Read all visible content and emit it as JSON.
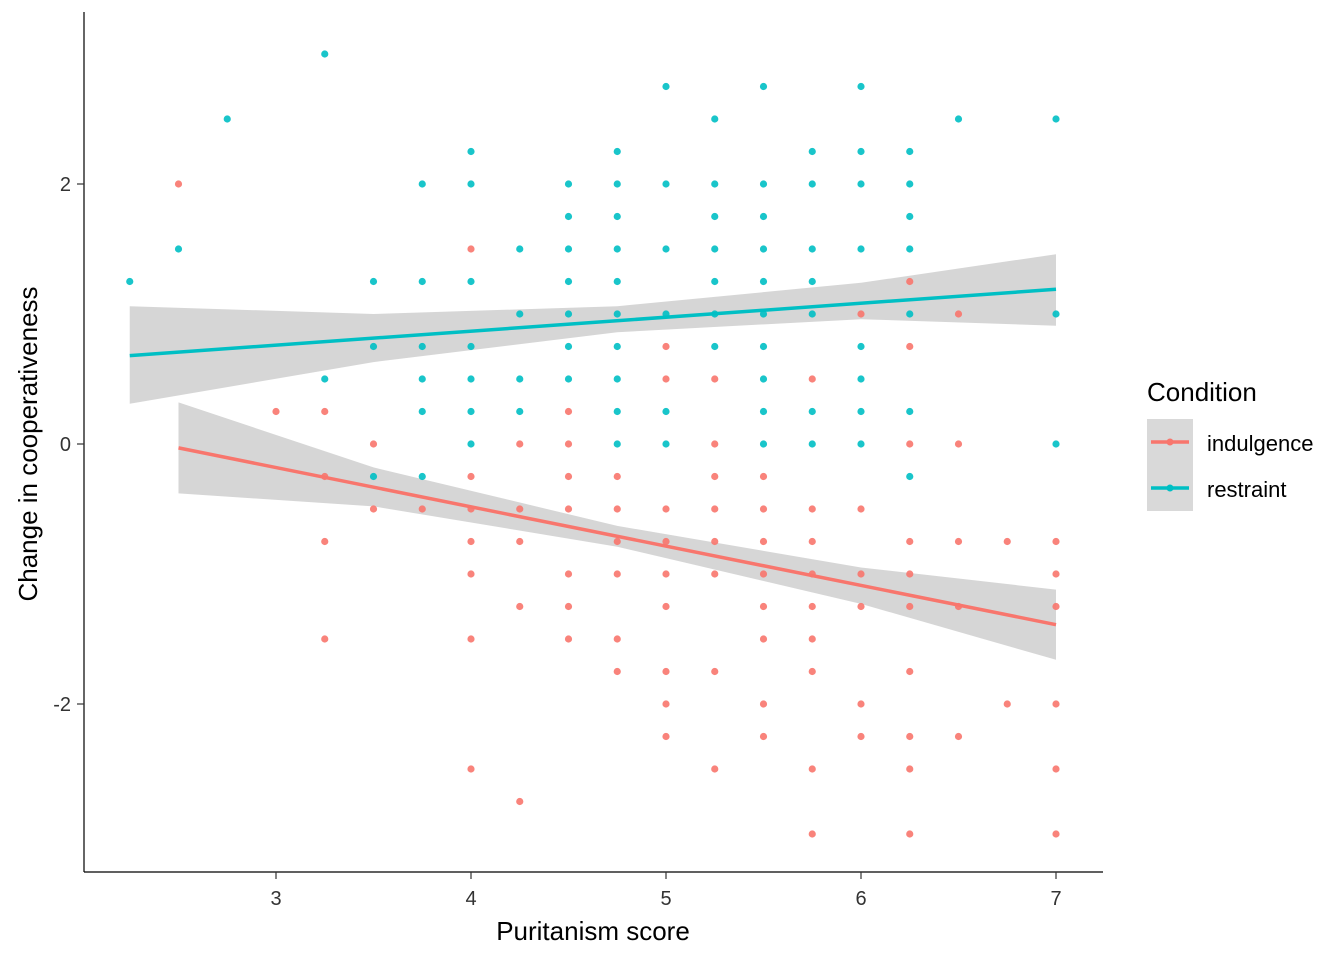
{
  "chart_data": {
    "type": "scatter",
    "title": "",
    "xlabel": "Puritanism score",
    "ylabel": "Change in cooperativeness",
    "xlim": [
      2.1,
      7.25
    ],
    "ylim": [
      -3.28,
      3.3
    ],
    "xticks": [
      3,
      4,
      5,
      6,
      7
    ],
    "yticks": [
      -2,
      0,
      2
    ],
    "grid": false,
    "legend": {
      "title": "Condition",
      "placement": "right"
    },
    "series": [
      {
        "name": "indulgence",
        "color": "#F8766D",
        "points": [
          [
            2.5,
            2
          ],
          [
            3,
            0.25
          ],
          [
            3.25,
            0.25
          ],
          [
            3.25,
            -0.25
          ],
          [
            3.25,
            -0.75
          ],
          [
            3.25,
            -1.5
          ],
          [
            3.5,
            0
          ],
          [
            3.5,
            -0.5
          ],
          [
            3.75,
            -0.5
          ],
          [
            4,
            1.5
          ],
          [
            4,
            -0.25
          ],
          [
            4,
            -0.5
          ],
          [
            4,
            -0.75
          ],
          [
            4,
            -1
          ],
          [
            4,
            -1.5
          ],
          [
            4,
            -2.5
          ],
          [
            4.25,
            0
          ],
          [
            4.25,
            -0.5
          ],
          [
            4.25,
            -0.75
          ],
          [
            4.25,
            -1.25
          ],
          [
            4.25,
            -2.75
          ],
          [
            4.5,
            0.25
          ],
          [
            4.5,
            0
          ],
          [
            4.5,
            -0.25
          ],
          [
            4.5,
            -0.5
          ],
          [
            4.5,
            -1
          ],
          [
            4.5,
            -1.25
          ],
          [
            4.5,
            -1.5
          ],
          [
            4.75,
            -0.25
          ],
          [
            4.75,
            -0.5
          ],
          [
            4.75,
            -0.75
          ],
          [
            4.75,
            -1
          ],
          [
            4.75,
            -1.5
          ],
          [
            4.75,
            -1.75
          ],
          [
            5,
            0.75
          ],
          [
            5,
            0.5
          ],
          [
            5,
            -0.5
          ],
          [
            5,
            -0.75
          ],
          [
            5,
            -1
          ],
          [
            5,
            -1.25
          ],
          [
            5,
            -1.75
          ],
          [
            5,
            -2
          ],
          [
            5,
            -2.25
          ],
          [
            5.25,
            0.5
          ],
          [
            5.25,
            0
          ],
          [
            5.25,
            -0.25
          ],
          [
            5.25,
            -0.5
          ],
          [
            5.25,
            -0.75
          ],
          [
            5.25,
            -1
          ],
          [
            5.25,
            -1.75
          ],
          [
            5.25,
            -2.5
          ],
          [
            5.5,
            -0.25
          ],
          [
            5.5,
            -0.5
          ],
          [
            5.5,
            -0.75
          ],
          [
            5.5,
            -1
          ],
          [
            5.5,
            -1.25
          ],
          [
            5.5,
            -1.5
          ],
          [
            5.5,
            -2
          ],
          [
            5.5,
            -2.25
          ],
          [
            5.75,
            0.5
          ],
          [
            5.75,
            -0.5
          ],
          [
            5.75,
            -0.75
          ],
          [
            5.75,
            -1
          ],
          [
            5.75,
            -1.25
          ],
          [
            5.75,
            -1.5
          ],
          [
            5.75,
            -1.75
          ],
          [
            5.75,
            -2.5
          ],
          [
            5.75,
            -3
          ],
          [
            6,
            1
          ],
          [
            6,
            -0.5
          ],
          [
            6,
            -1
          ],
          [
            6,
            -1.25
          ],
          [
            6,
            -2
          ],
          [
            6,
            -2.25
          ],
          [
            6.25,
            1.25
          ],
          [
            6.25,
            0.75
          ],
          [
            6.25,
            0
          ],
          [
            6.25,
            -0.75
          ],
          [
            6.25,
            -1
          ],
          [
            6.25,
            -1.25
          ],
          [
            6.25,
            -1.75
          ],
          [
            6.25,
            -2.25
          ],
          [
            6.25,
            -2.5
          ],
          [
            6.25,
            -3
          ],
          [
            6.5,
            1
          ],
          [
            6.5,
            0
          ],
          [
            6.5,
            -0.75
          ],
          [
            6.5,
            -1.25
          ],
          [
            6.5,
            -2.25
          ],
          [
            6.75,
            -0.75
          ],
          [
            6.75,
            -2
          ],
          [
            7,
            -0.75
          ],
          [
            7,
            -1
          ],
          [
            7,
            -1.25
          ],
          [
            7,
            -2
          ],
          [
            7,
            -2.5
          ],
          [
            7,
            -3
          ]
        ],
        "fit": {
          "x": [
            2.5,
            7
          ],
          "y": [
            -0.03,
            -1.39
          ]
        },
        "ribbon": [
          [
            2.5,
            -0.38,
            0.32
          ],
          [
            3.5,
            -0.48,
            -0.18
          ],
          [
            4.75,
            -0.79,
            -0.63
          ],
          [
            6,
            -1.23,
            -0.95
          ],
          [
            7,
            -1.66,
            -1.12
          ]
        ]
      },
      {
        "name": "restraint",
        "color": "#00BFC4",
        "points": [
          [
            2.25,
            1.25
          ],
          [
            2.5,
            1.5
          ],
          [
            2.75,
            2.5
          ],
          [
            3.25,
            3
          ],
          [
            3.25,
            0.5
          ],
          [
            3.5,
            1.25
          ],
          [
            3.5,
            0.75
          ],
          [
            3.5,
            -0.25
          ],
          [
            3.75,
            2
          ],
          [
            3.75,
            1.25
          ],
          [
            3.75,
            0.75
          ],
          [
            3.75,
            0.5
          ],
          [
            3.75,
            0.25
          ],
          [
            3.75,
            -0.25
          ],
          [
            4,
            2.25
          ],
          [
            4,
            2
          ],
          [
            4,
            1.25
          ],
          [
            4,
            0.75
          ],
          [
            4,
            0.5
          ],
          [
            4,
            0.25
          ],
          [
            4,
            0
          ],
          [
            4.25,
            1.5
          ],
          [
            4.25,
            1
          ],
          [
            4.25,
            0.5
          ],
          [
            4.25,
            0.25
          ],
          [
            4.5,
            2
          ],
          [
            4.5,
            1.75
          ],
          [
            4.5,
            1.5
          ],
          [
            4.5,
            1.25
          ],
          [
            4.5,
            1
          ],
          [
            4.5,
            0.75
          ],
          [
            4.5,
            0.5
          ],
          [
            4.75,
            2.25
          ],
          [
            4.75,
            2
          ],
          [
            4.75,
            1.75
          ],
          [
            4.75,
            1.5
          ],
          [
            4.75,
            1.25
          ],
          [
            4.75,
            1
          ],
          [
            4.75,
            0.75
          ],
          [
            4.75,
            0.5
          ],
          [
            4.75,
            0.25
          ],
          [
            4.75,
            0
          ],
          [
            5,
            2.75
          ],
          [
            5,
            2
          ],
          [
            5,
            1.5
          ],
          [
            5,
            1
          ],
          [
            5,
            0.25
          ],
          [
            5,
            0
          ],
          [
            5.25,
            2.5
          ],
          [
            5.25,
            2
          ],
          [
            5.25,
            1.75
          ],
          [
            5.25,
            1.5
          ],
          [
            5.25,
            1.25
          ],
          [
            5.25,
            1
          ],
          [
            5.25,
            0.75
          ],
          [
            5.5,
            2.75
          ],
          [
            5.5,
            2
          ],
          [
            5.5,
            1.75
          ],
          [
            5.5,
            1.5
          ],
          [
            5.5,
            1.25
          ],
          [
            5.5,
            1
          ],
          [
            5.5,
            0.75
          ],
          [
            5.5,
            0.5
          ],
          [
            5.5,
            0.25
          ],
          [
            5.5,
            0
          ],
          [
            5.75,
            2.25
          ],
          [
            5.75,
            2
          ],
          [
            5.75,
            1.5
          ],
          [
            5.75,
            1.25
          ],
          [
            5.75,
            1
          ],
          [
            5.75,
            0.25
          ],
          [
            5.75,
            0
          ],
          [
            6,
            2.75
          ],
          [
            6,
            2.25
          ],
          [
            6,
            2
          ],
          [
            6,
            1.5
          ],
          [
            6,
            0.75
          ],
          [
            6,
            0.5
          ],
          [
            6,
            0.25
          ],
          [
            6,
            0
          ],
          [
            6.25,
            2.25
          ],
          [
            6.25,
            2
          ],
          [
            6.25,
            1.75
          ],
          [
            6.25,
            1.5
          ],
          [
            6.25,
            1
          ],
          [
            6.25,
            0.25
          ],
          [
            6.25,
            -0.25
          ],
          [
            6.5,
            2.5
          ],
          [
            7,
            2.5
          ],
          [
            7,
            1
          ],
          [
            7,
            0
          ]
        ],
        "fit": {
          "x": [
            2.25,
            7
          ],
          "y": [
            0.68,
            1.19
          ]
        },
        "ribbon": [
          [
            2.25,
            0.31,
            1.06
          ],
          [
            3.5,
            0.63,
            1.0
          ],
          [
            4.75,
            0.86,
            1.06
          ],
          [
            6,
            0.96,
            1.24
          ],
          [
            7,
            0.91,
            1.46
          ]
        ]
      }
    ]
  }
}
